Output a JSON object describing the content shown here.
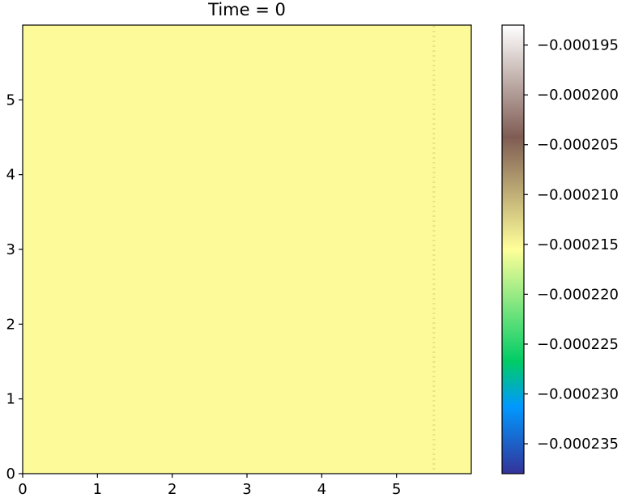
{
  "chart_data": {
    "type": "heatmap",
    "title": "Time = 0",
    "xlabel": "",
    "ylabel": "",
    "xlim": [
      0,
      6
    ],
    "ylim": [
      0,
      6
    ],
    "x_ticks": [
      0,
      1,
      2,
      3,
      4,
      5
    ],
    "y_ticks": [
      0,
      1,
      2,
      3,
      4,
      5
    ],
    "x_tick_labels": [
      "0",
      "1",
      "2",
      "3",
      "4",
      "5"
    ],
    "y_tick_labels": [
      "0",
      "1",
      "2",
      "3",
      "4",
      "5"
    ],
    "field_value": -0.000215,
    "field_color": "#fdfb99",
    "dotted_vertical_line_x": 5.5,
    "dotted_line_color": "#e8e187",
    "colorbar": {
      "colormap": "terrain",
      "range": [
        -0.000238,
        -0.000193
      ],
      "ticks": [
        -0.000195,
        -0.0002,
        -0.000205,
        -0.00021,
        -0.000215,
        -0.00022,
        -0.000225,
        -0.00023,
        -0.000235
      ],
      "tick_labels": [
        "−0.000195",
        "−0.000200",
        "−0.000205",
        "−0.000210",
        "−0.000215",
        "−0.000220",
        "−0.000225",
        "−0.000230",
        "−0.000235"
      ],
      "stops": [
        {
          "v": 0.0,
          "color": "#333399"
        },
        {
          "v": 0.15,
          "color": "#0099ff"
        },
        {
          "v": 0.25,
          "color": "#00cc66"
        },
        {
          "v": 0.5,
          "color": "#ffff99"
        },
        {
          "v": 0.75,
          "color": "#7f5c53"
        },
        {
          "v": 1.0,
          "color": "#ffffff"
        }
      ]
    }
  }
}
